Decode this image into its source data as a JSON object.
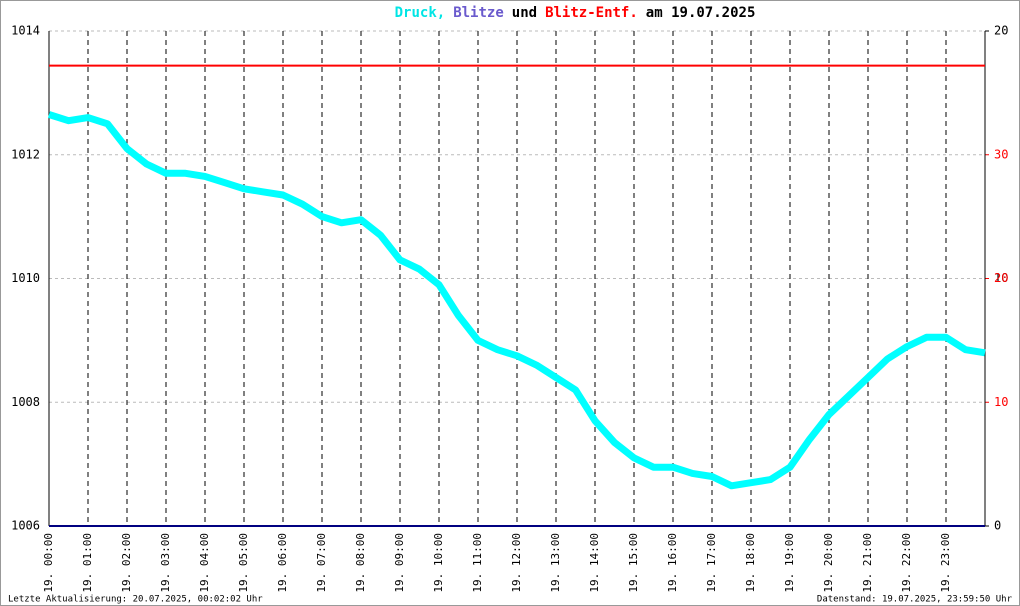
{
  "chart_data": {
    "type": "line",
    "title_parts": [
      {
        "text": "Druck,",
        "color": "#00e5e5"
      },
      {
        "text": "Blitze",
        "color": "#6a5acd"
      },
      {
        "text": "und",
        "color": "#000000"
      },
      {
        "text": "Blitz-Entf.",
        "color": "#ff0000"
      },
      {
        "text": "am 19.07.2025",
        "color": "#000000"
      }
    ],
    "xlim": [
      0,
      24
    ],
    "xticks": [
      {
        "value": 0,
        "label": "19. 00:00"
      },
      {
        "value": 1,
        "label": "19. 01:00"
      },
      {
        "value": 2,
        "label": "19. 02:00"
      },
      {
        "value": 3,
        "label": "19. 03:00"
      },
      {
        "value": 4,
        "label": "19. 04:00"
      },
      {
        "value": 5,
        "label": "19. 05:00"
      },
      {
        "value": 6,
        "label": "19. 06:00"
      },
      {
        "value": 7,
        "label": "19. 07:00"
      },
      {
        "value": 8,
        "label": "19. 08:00"
      },
      {
        "value": 9,
        "label": "19. 09:00"
      },
      {
        "value": 10,
        "label": "19. 10:00"
      },
      {
        "value": 11,
        "label": "19. 11:00"
      },
      {
        "value": 12,
        "label": "19. 12:00"
      },
      {
        "value": 13,
        "label": "19. 13:00"
      },
      {
        "value": 14,
        "label": "19. 14:00"
      },
      {
        "value": 15,
        "label": "19. 15:00"
      },
      {
        "value": 16,
        "label": "19. 16:00"
      },
      {
        "value": 17,
        "label": "19. 17:00"
      },
      {
        "value": 18,
        "label": "19. 18:00"
      },
      {
        "value": 19,
        "label": "19. 19:00"
      },
      {
        "value": 20,
        "label": "19. 20:00"
      },
      {
        "value": 21,
        "label": "19. 21:00"
      },
      {
        "value": 22,
        "label": "19. 22:00"
      },
      {
        "value": 23,
        "label": "19. 23:00"
      }
    ],
    "ylim": [
      1006,
      1014
    ],
    "yticks": [
      1006,
      1008,
      1010,
      1012,
      1014
    ],
    "y2lim": [
      0,
      20
    ],
    "y2ticks": [
      0,
      10,
      20
    ],
    "y3lim": [
      0,
      40
    ],
    "y3ticks": [
      10,
      20,
      30
    ],
    "y3color": "#ff0000",
    "grid": true,
    "series": [
      {
        "name": "Druck",
        "color": "#00ffff",
        "x": [
          0,
          0.5,
          1,
          1.5,
          2,
          2.5,
          3,
          3.5,
          4,
          4.5,
          5,
          5.5,
          6,
          6.5,
          7,
          7.5,
          8,
          8.5,
          9,
          9.5,
          10,
          10.5,
          11,
          11.5,
          12,
          12.5,
          13,
          13.5,
          14,
          14.5,
          15,
          15.5,
          16,
          16.5,
          17,
          17.5,
          18,
          18.5,
          19,
          19.5,
          20,
          20.5,
          21,
          21.5,
          22,
          22.5,
          23,
          23.5,
          24
        ],
        "values": [
          1012.65,
          1012.55,
          1012.6,
          1012.5,
          1012.1,
          1011.85,
          1011.7,
          1011.7,
          1011.65,
          1011.55,
          1011.45,
          1011.4,
          1011.35,
          1011.2,
          1011.0,
          1010.9,
          1010.95,
          1010.7,
          1010.3,
          1010.15,
          1009.9,
          1009.4,
          1009.0,
          1008.85,
          1008.75,
          1008.6,
          1008.4,
          1008.2,
          1007.7,
          1007.35,
          1007.1,
          1006.95,
          1006.95,
          1006.85,
          1006.8,
          1006.65,
          1006.7,
          1006.75,
          1006.95,
          1007.4,
          1007.8,
          1008.1,
          1008.4,
          1008.7,
          1008.9,
          1009.05,
          1009.05,
          1008.85,
          1008.8
        ]
      },
      {
        "name": "Blitze",
        "color": "#000080",
        "axis": "y2",
        "x": [
          0,
          24
        ],
        "values": [
          0,
          0
        ]
      },
      {
        "name": "Blitz-Entf.",
        "color": "#ff0000",
        "axis": "y3",
        "x": [
          0,
          24
        ],
        "values": [
          37.2,
          37.2
        ]
      }
    ],
    "footer_left": "Letzte Aktualisierung: 20.07.2025, 00:02:02 Uhr",
    "footer_right": "Datenstand: 19.07.2025, 23:59:50 Uhr"
  }
}
